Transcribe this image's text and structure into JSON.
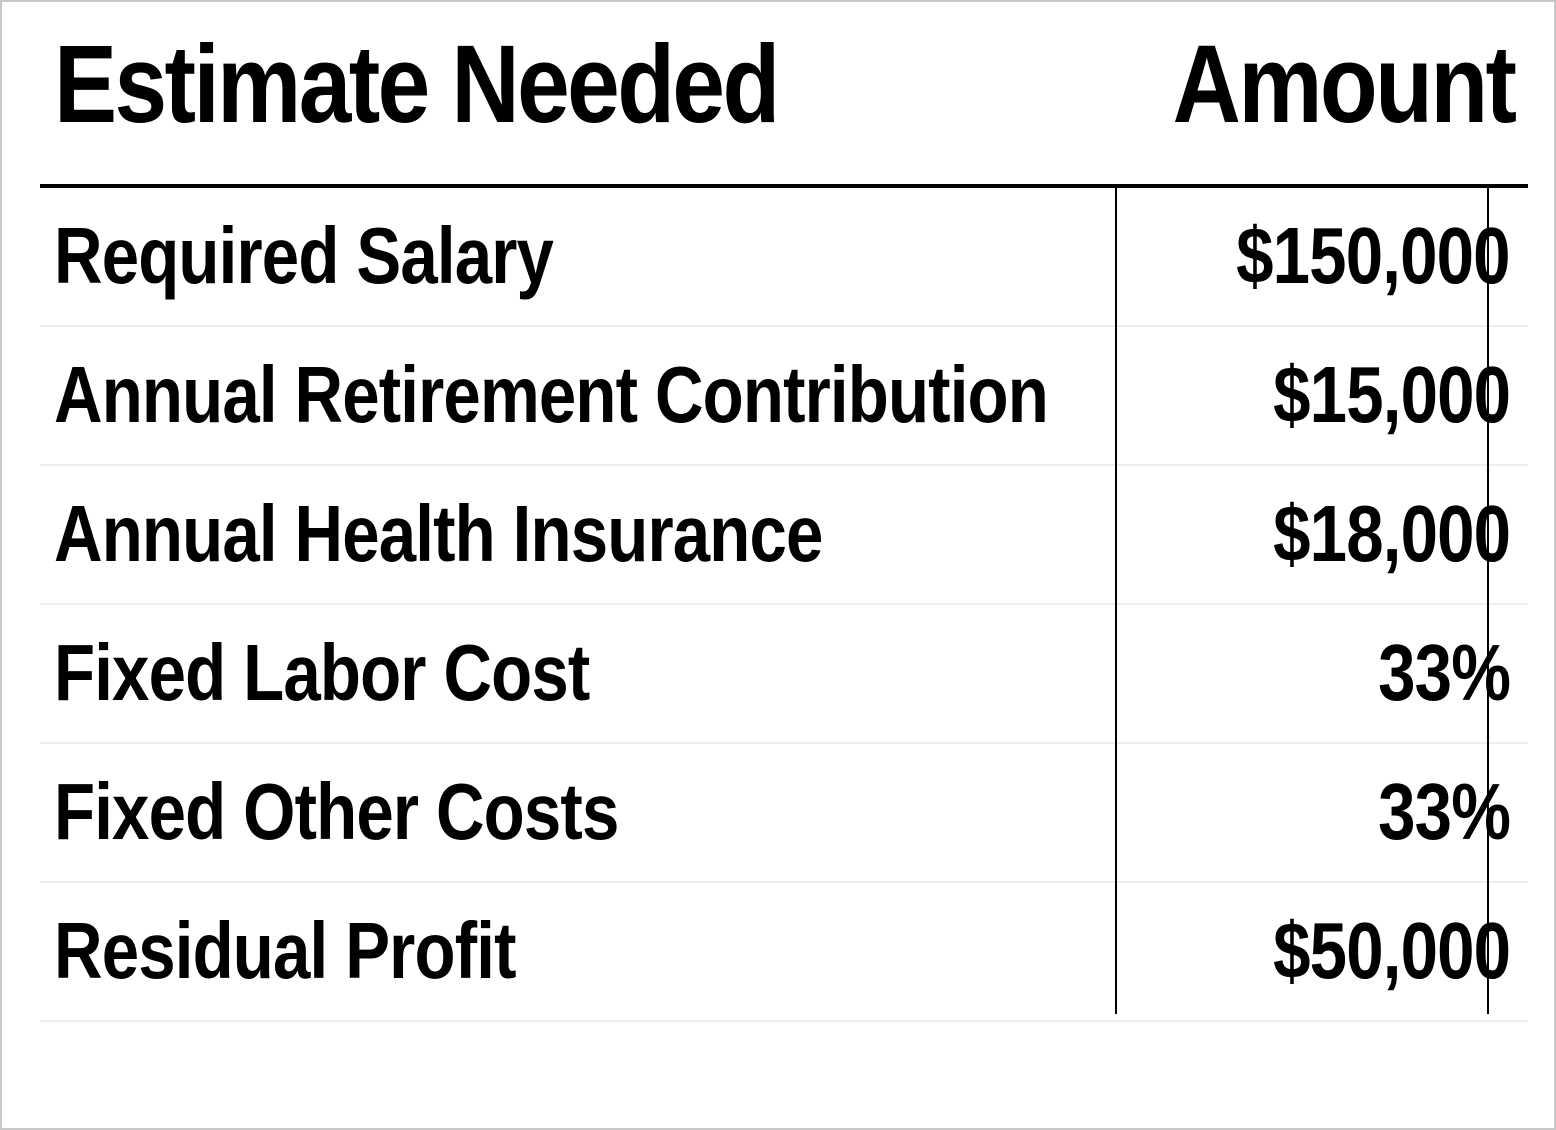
{
  "table": {
    "header": {
      "label": "Estimate Needed",
      "amount": "Amount"
    },
    "rows": [
      {
        "label": "Required Salary",
        "value": "$150,000"
      },
      {
        "label": "Annual Retirement Contribution",
        "value": "$15,000"
      },
      {
        "label": "Annual Health Insurance",
        "value": "$18,000"
      },
      {
        "label": "Fixed Labor Cost",
        "value": "33%"
      },
      {
        "label": "Fixed Other Costs",
        "value": "33%"
      },
      {
        "label": "Residual Profit",
        "value": "$50,000"
      }
    ]
  },
  "colors": {
    "text": "#000000",
    "background": "#ffffff",
    "row_separator": "#ededed",
    "rule": "#000000"
  }
}
